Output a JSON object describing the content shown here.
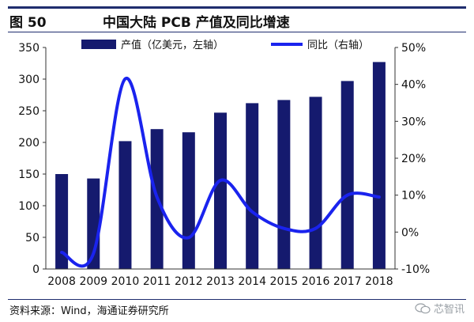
{
  "header": {
    "figure_label": "图 50",
    "title": "中国大陆 PCB 产值及同比增速"
  },
  "source": "资料来源：Wind，海通证券研究所",
  "watermark": {
    "text": "芯智讯",
    "icon": "wechat-icon"
  },
  "colors": {
    "bar": "#151a6e",
    "line": "#1a23ee",
    "axis": "#333333",
    "rule": "#1f2d6e"
  },
  "chart_data": {
    "type": "bar",
    "categories": [
      "2008",
      "2009",
      "2010",
      "2011",
      "2012",
      "2013",
      "2014",
      "2015",
      "2016",
      "2017",
      "2018"
    ],
    "series": [
      {
        "name": "产值（亿美元，左轴）",
        "type": "bar",
        "axis": "left",
        "values": [
          150,
          143,
          202,
          221,
          216,
          247,
          262,
          267,
          272,
          297,
          327
        ]
      },
      {
        "name": "同比（右轴）",
        "type": "line",
        "axis": "right",
        "smooth": true,
        "values": [
          -5.5,
          -5.8,
          41.5,
          9.5,
          -1.5,
          14.0,
          5.5,
          1.0,
          1.0,
          10.0,
          9.5
        ]
      }
    ],
    "left_axis": {
      "ticks": [
        "0",
        "50",
        "100",
        "150",
        "200",
        "250",
        "300",
        "350"
      ],
      "min": 0,
      "max": 350
    },
    "right_axis": {
      "ticks": [
        "-10%",
        "0%",
        "10%",
        "20%",
        "30%",
        "40%",
        "50%"
      ],
      "min": -10,
      "max": 50
    },
    "legend_position": "top",
    "grid": false
  }
}
